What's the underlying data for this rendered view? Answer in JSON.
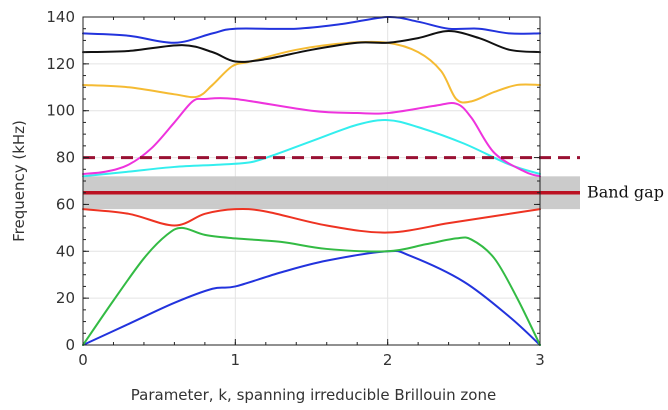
{
  "chart_data": {
    "type": "line",
    "title": "",
    "xlabel": "Parameter, k, spanning irreducible Brillouin zone",
    "ylabel": "Frequency (kHz)",
    "xlim": [
      0,
      3
    ],
    "ylim": [
      0,
      140
    ],
    "x_ticks": [
      "0",
      "1",
      "2",
      "3"
    ],
    "y_ticks": [
      "0",
      "20",
      "40",
      "60",
      "80",
      "100",
      "120",
      "140"
    ],
    "grid": true,
    "series": [
      {
        "color": "#2233dd",
        "points": [
          [
            0,
            0
          ],
          [
            0.3,
            9
          ],
          [
            0.6,
            18
          ],
          [
            0.85,
            24
          ],
          [
            1,
            25
          ],
          [
            1.3,
            31
          ],
          [
            1.6,
            36
          ],
          [
            2,
            40
          ],
          [
            2.15,
            38
          ],
          [
            2.5,
            27
          ],
          [
            2.8,
            12
          ],
          [
            3,
            0
          ]
        ]
      },
      {
        "color": "#33bb44",
        "points": [
          [
            0,
            0
          ],
          [
            0.2,
            19
          ],
          [
            0.4,
            37
          ],
          [
            0.55,
            47
          ],
          [
            0.65,
            50
          ],
          [
            0.8,
            47
          ],
          [
            1,
            45.5
          ],
          [
            1.3,
            44
          ],
          [
            1.6,
            41
          ],
          [
            2,
            40
          ],
          [
            2.25,
            43
          ],
          [
            2.45,
            45.5
          ],
          [
            2.55,
            45
          ],
          [
            2.7,
            37
          ],
          [
            2.85,
            20
          ],
          [
            3,
            0
          ]
        ]
      },
      {
        "color": "#ee3322",
        "points": [
          [
            0,
            58
          ],
          [
            0.3,
            56
          ],
          [
            0.6,
            51
          ],
          [
            0.8,
            56
          ],
          [
            1,
            58
          ],
          [
            1.2,
            57
          ],
          [
            1.6,
            51
          ],
          [
            2,
            48
          ],
          [
            2.4,
            52
          ],
          [
            2.7,
            55
          ],
          [
            3,
            58
          ]
        ]
      },
      {
        "color": "#33eeee",
        "points": [
          [
            0,
            72
          ],
          [
            0.3,
            74
          ],
          [
            0.6,
            76
          ],
          [
            0.9,
            77
          ],
          [
            1.1,
            78
          ],
          [
            1.25,
            81
          ],
          [
            1.5,
            87
          ],
          [
            1.8,
            94
          ],
          [
            2,
            96
          ],
          [
            2.2,
            93
          ],
          [
            2.5,
            86
          ],
          [
            2.8,
            77
          ],
          [
            3,
            73
          ]
        ]
      },
      {
        "color": "#ee33dd",
        "points": [
          [
            0,
            73
          ],
          [
            0.15,
            74
          ],
          [
            0.3,
            77
          ],
          [
            0.45,
            84
          ],
          [
            0.6,
            95
          ],
          [
            0.72,
            104
          ],
          [
            0.8,
            105
          ],
          [
            1,
            105
          ],
          [
            1.5,
            100
          ],
          [
            1.8,
            99
          ],
          [
            2,
            99
          ],
          [
            2.3,
            102
          ],
          [
            2.45,
            103
          ],
          [
            2.55,
            97
          ],
          [
            2.7,
            82
          ],
          [
            2.9,
            74
          ],
          [
            3,
            72
          ]
        ]
      },
      {
        "color": "#f5bb33",
        "points": [
          [
            0,
            111
          ],
          [
            0.3,
            110
          ],
          [
            0.6,
            107
          ],
          [
            0.75,
            106
          ],
          [
            0.85,
            111
          ],
          [
            0.98,
            119
          ],
          [
            1.1,
            121
          ],
          [
            1.4,
            126
          ],
          [
            1.75,
            129
          ],
          [
            2,
            129
          ],
          [
            2.2,
            125
          ],
          [
            2.35,
            117
          ],
          [
            2.45,
            105
          ],
          [
            2.55,
            104
          ],
          [
            2.7,
            108
          ],
          [
            2.85,
            111
          ],
          [
            3,
            111
          ]
        ]
      },
      {
        "color": "#111111",
        "points": [
          [
            0,
            125
          ],
          [
            0.3,
            125.5
          ],
          [
            0.65,
            128
          ],
          [
            0.85,
            125
          ],
          [
            1,
            121
          ],
          [
            1.2,
            122
          ],
          [
            1.5,
            126
          ],
          [
            1.8,
            129
          ],
          [
            2,
            129
          ],
          [
            2.2,
            131
          ],
          [
            2.4,
            134
          ],
          [
            2.6,
            131
          ],
          [
            2.8,
            126
          ],
          [
            3,
            125
          ]
        ]
      },
      {
        "color": "#2233dd",
        "points": [
          [
            0,
            133
          ],
          [
            0.3,
            132
          ],
          [
            0.6,
            129
          ],
          [
            0.85,
            133
          ],
          [
            1,
            135
          ],
          [
            1.4,
            135
          ],
          [
            1.7,
            137
          ],
          [
            2,
            140
          ],
          [
            2.2,
            138
          ],
          [
            2.4,
            135
          ],
          [
            2.6,
            135
          ],
          [
            2.8,
            133
          ],
          [
            3,
            133
          ]
        ]
      }
    ],
    "band_gap": {
      "lower": 58,
      "upper": 72,
      "line": 65,
      "label": "Band gap",
      "color": "#bb1122",
      "fill": "#c8c8c8"
    },
    "threshold": {
      "value": 80,
      "style": "dashed",
      "color": "#991133"
    }
  }
}
